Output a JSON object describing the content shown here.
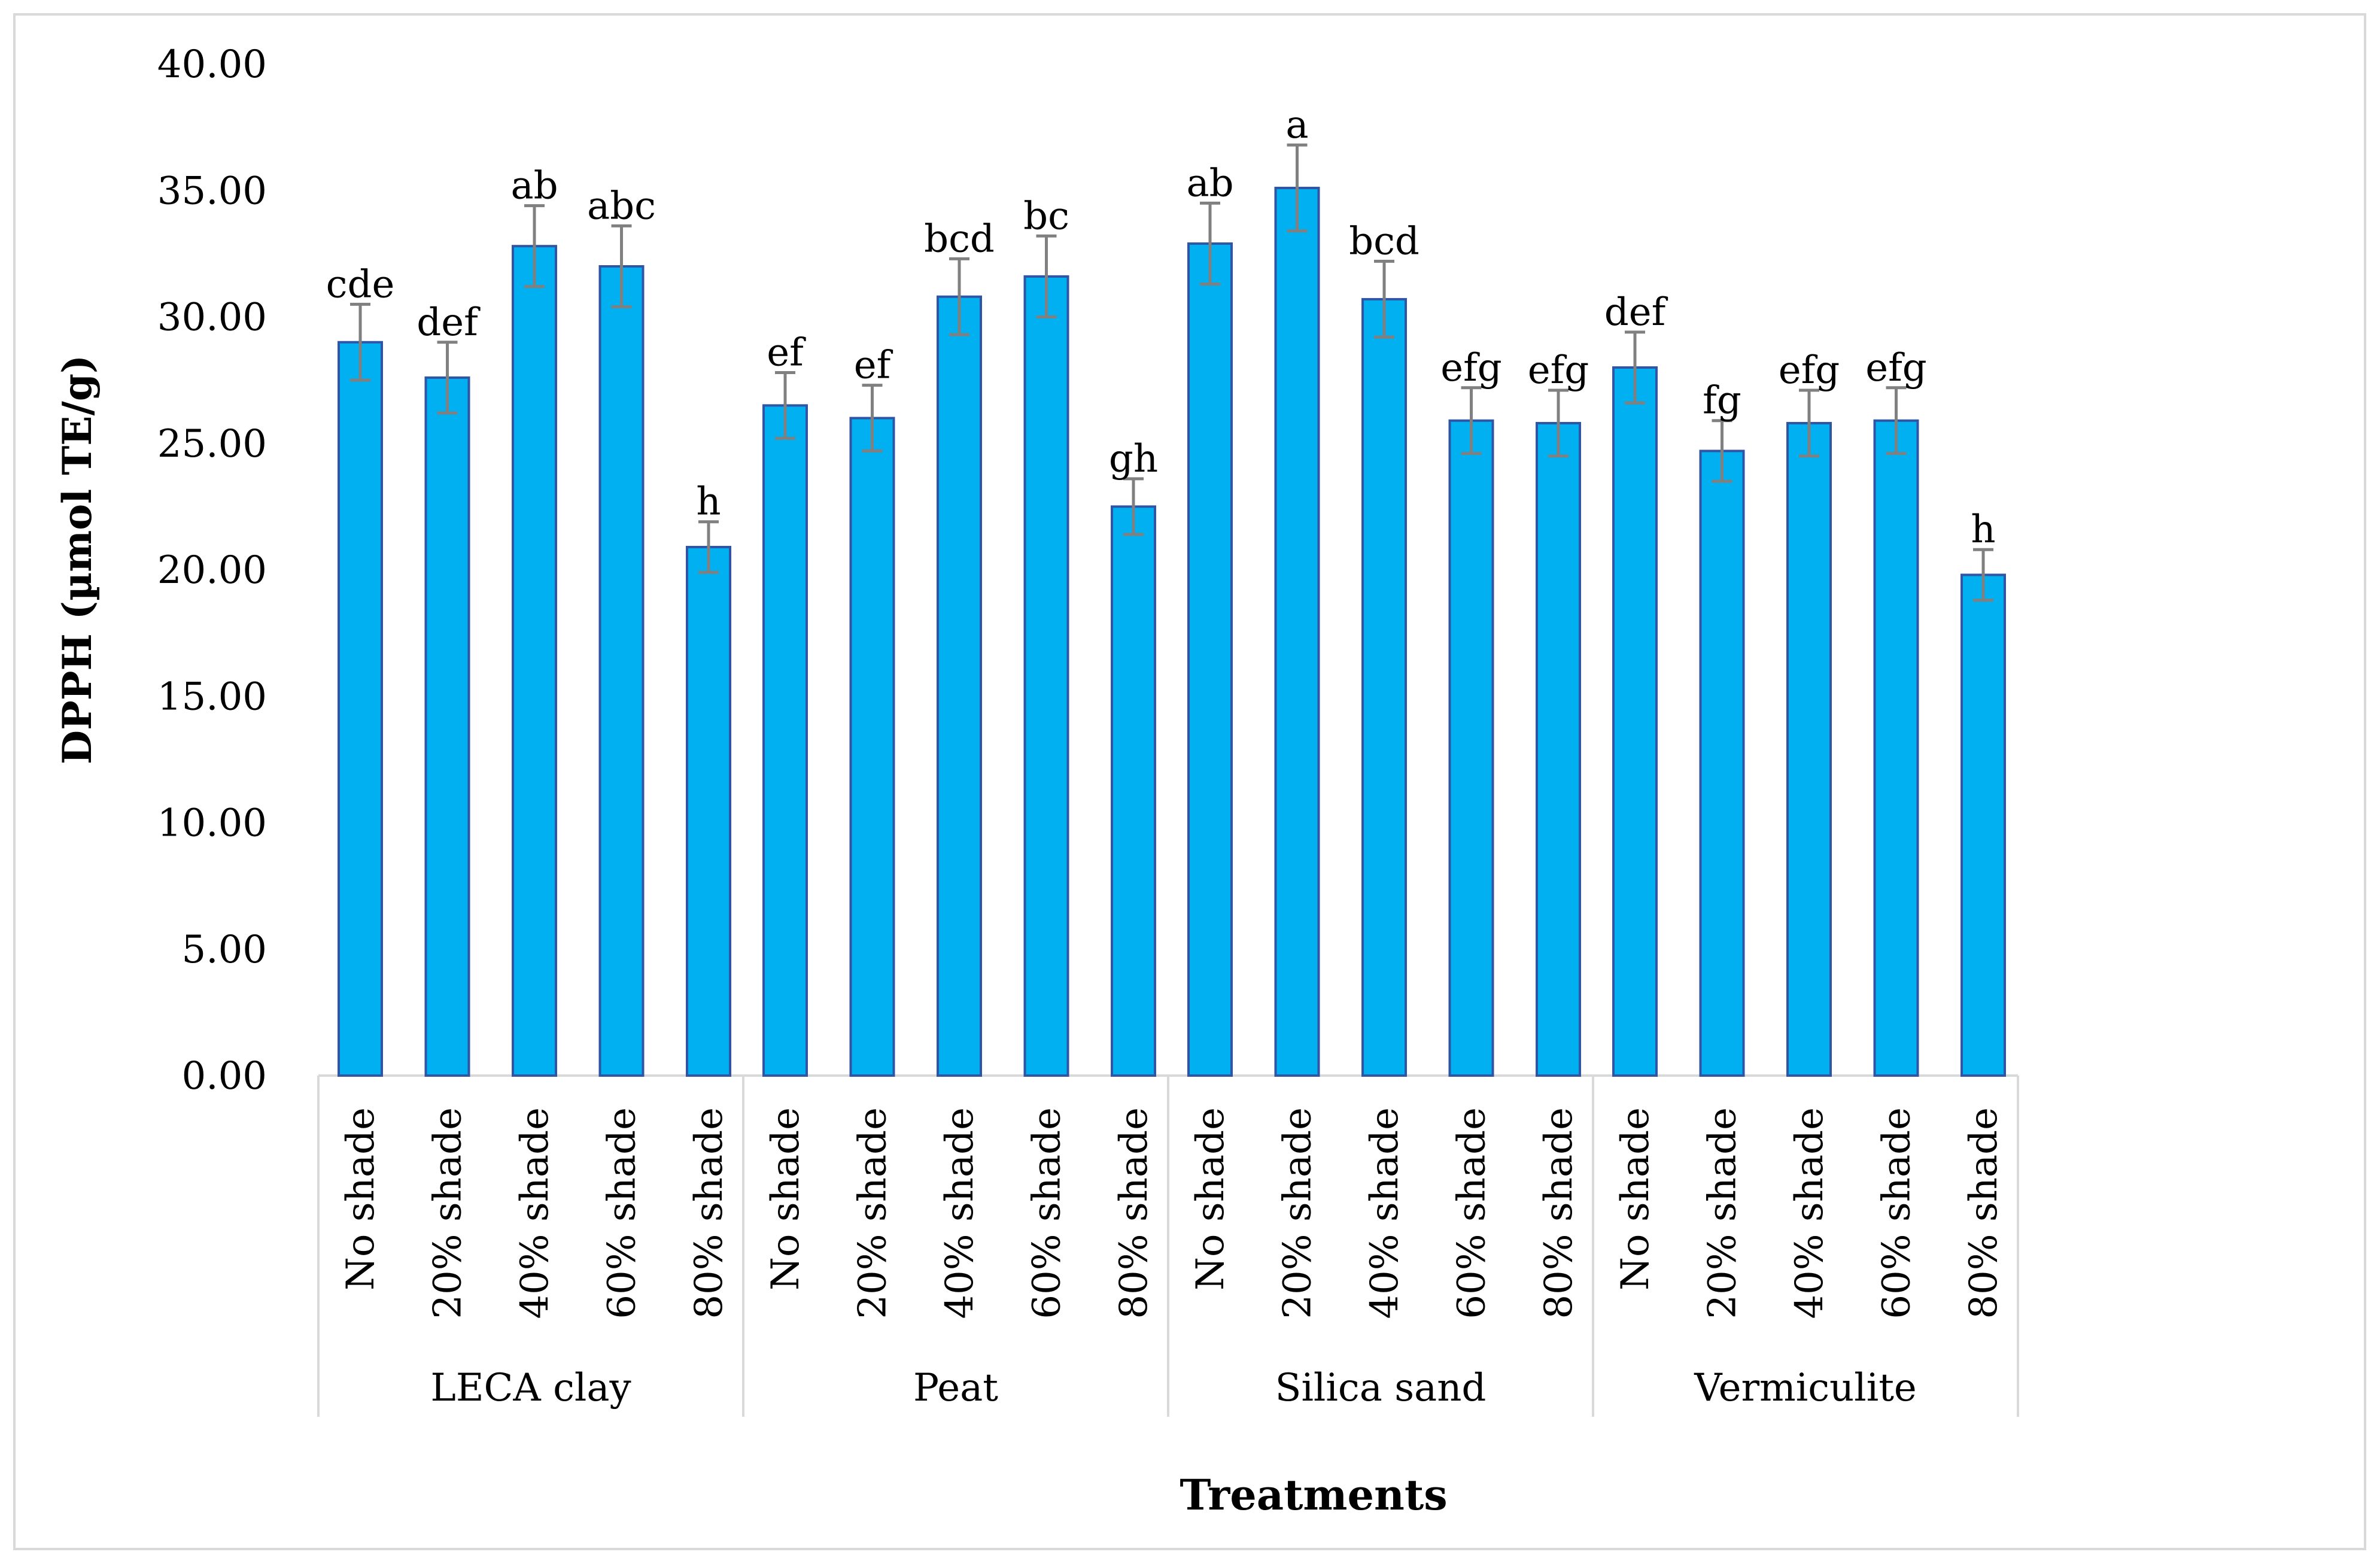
{
  "chart_data": {
    "type": "bar",
    "title": "",
    "xlabel": "Treatments",
    "ylabel": "DPPH (µmol  TE/g)",
    "ylim": [
      0,
      40
    ],
    "ytick_step": 5,
    "ytick_labels": [
      "0.00",
      "5.00",
      "10.00",
      "15.00",
      "20.00",
      "25.00",
      "30.00",
      "35.00",
      "40.00"
    ],
    "grid": false,
    "bar_color": "#00b0f0",
    "bar_edge_color": "#2f55a4",
    "error_color": "#808080",
    "groups": [
      {
        "name": "LECA clay",
        "categories": [
          "No shade",
          "20% shade",
          "40% shade",
          "60% shade",
          "80% shade"
        ],
        "values": [
          29.0,
          27.6,
          32.8,
          32.0,
          20.9
        ],
        "errors": [
          1.5,
          1.4,
          1.6,
          1.6,
          1.0
        ],
        "letters": [
          "cde",
          "def",
          "ab",
          "abc",
          "h"
        ]
      },
      {
        "name": "Peat",
        "categories": [
          "No shade",
          "20% shade",
          "40% shade",
          "60% shade",
          "80% shade"
        ],
        "values": [
          26.5,
          26.0,
          30.8,
          31.6,
          22.5
        ],
        "errors": [
          1.3,
          1.3,
          1.5,
          1.6,
          1.1
        ],
        "letters": [
          "ef",
          "ef",
          "bcd",
          "bc",
          "gh"
        ]
      },
      {
        "name": "Silica sand",
        "categories": [
          "No shade",
          "20% shade",
          "40% shade",
          "60% shade",
          "80% shade"
        ],
        "values": [
          32.9,
          35.1,
          30.7,
          25.9,
          25.8
        ],
        "errors": [
          1.6,
          1.7,
          1.5,
          1.3,
          1.3
        ],
        "letters": [
          "ab",
          "a",
          "bcd",
          "efg",
          "efg"
        ]
      },
      {
        "name": "Vermiculite",
        "categories": [
          "No shade",
          "20% shade",
          "40% shade",
          "60% shade",
          "80% shade"
        ],
        "values": [
          28.0,
          24.7,
          25.8,
          25.9,
          19.8
        ],
        "errors": [
          1.4,
          1.2,
          1.3,
          1.3,
          1.0
        ],
        "letters": [
          "def",
          "fg",
          "efg",
          "efg",
          "h"
        ]
      }
    ]
  }
}
